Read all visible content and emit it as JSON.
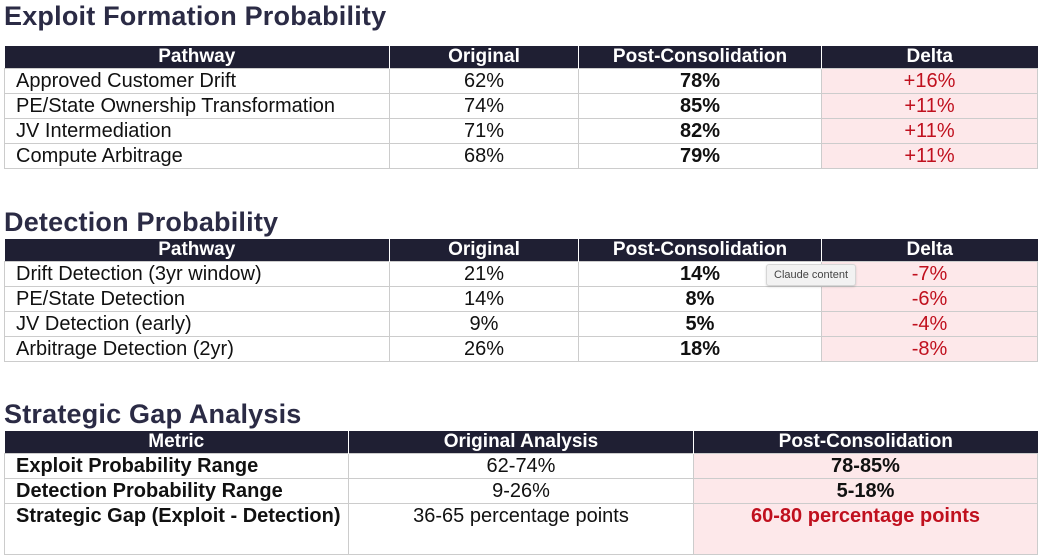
{
  "exploit": {
    "title": "Exploit Formation Probability",
    "headers": [
      "Pathway",
      "Original",
      "Post-Consolidation",
      "Delta"
    ],
    "rows": [
      [
        "Approved Customer Drift",
        "62%",
        "78%",
        "+16%"
      ],
      [
        "PE/State Ownership Transformation",
        "74%",
        "85%",
        "+11%"
      ],
      [
        "JV Intermediation",
        "71%",
        "82%",
        "+11%"
      ],
      [
        "Compute Arbitrage",
        "68%",
        "79%",
        "+11%"
      ]
    ]
  },
  "detection": {
    "title": "Detection Probability",
    "headers": [
      "Pathway",
      "Original",
      "Post-Consolidation",
      "Delta"
    ],
    "rows": [
      [
        "Drift Detection (3yr window)",
        "21%",
        "14%",
        "-7%"
      ],
      [
        "PE/State Detection",
        "14%",
        "8%",
        "-6%"
      ],
      [
        "JV Detection (early)",
        "9%",
        "5%",
        "-4%"
      ],
      [
        "Arbitrage Detection (2yr)",
        "26%",
        "18%",
        "-8%"
      ]
    ]
  },
  "gap": {
    "title": "Strategic Gap Analysis",
    "headers": [
      "Metric",
      "Original Analysis",
      "Post-Consolidation"
    ],
    "rows": [
      [
        "Exploit Probability Range",
        "62-74%",
        "78-85%"
      ],
      [
        "Detection Probability Range",
        "9-26%",
        "5-18%"
      ],
      [
        "Strategic Gap (Exploit - Detection)",
        "36-65 percentage points",
        "60-80 percentage points"
      ]
    ]
  },
  "tooltip": "Claude content",
  "colors": {
    "header_bg": "#1f1f33",
    "delta_bg": "#fde8ea",
    "delta_text": "#c0101e",
    "title": "#2b2b45"
  }
}
